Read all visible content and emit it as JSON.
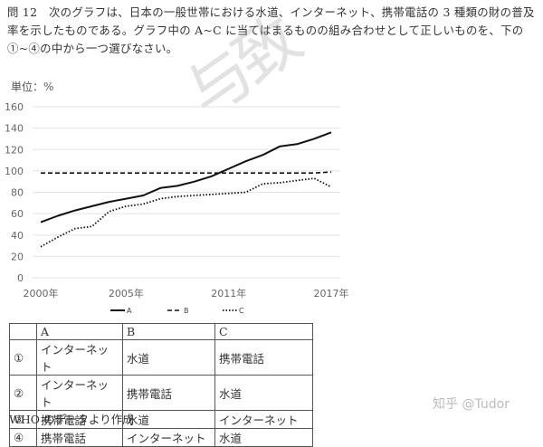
{
  "question": {
    "text": "問 12　次のグラフは、日本の一般世帯における水道、インターネット、携帯電話の 3 種類の財の普及率を示したものである。グラフ中の A~C に当てはまるものの組み合わせとして正しいものを、下の①~④の中から一つ選びなさい。"
  },
  "unit_label": "単位：%",
  "watermark": "与致",
  "chart_data": {
    "type": "line",
    "title": "",
    "xlabel": "",
    "ylabel": "単位：%",
    "ylim": [
      0,
      160
    ],
    "yticks": [
      0,
      20,
      40,
      60,
      80,
      100,
      120,
      140,
      160
    ],
    "grid": true,
    "legend_position": "bottom",
    "x": [
      2000,
      2001,
      2002,
      2003,
      2004,
      2005,
      2006,
      2007,
      2008,
      2009,
      2010,
      2011,
      2012,
      2013,
      2014,
      2015,
      2016,
      2017
    ],
    "xtick_labels": [
      {
        "year": 2000,
        "label": "2000年"
      },
      {
        "year": 2005,
        "label": "2005年"
      },
      {
        "year": 2011,
        "label": "2011年"
      },
      {
        "year": 2017,
        "label": "2017年"
      }
    ],
    "series": [
      {
        "name": "A",
        "style": "solid",
        "values": [
          52,
          58,
          63,
          67,
          71,
          74,
          77,
          84,
          86,
          90,
          95,
          102,
          109,
          115,
          123,
          125,
          130,
          136
        ]
      },
      {
        "name": "B",
        "style": "dashed",
        "values": [
          98,
          98,
          98,
          98,
          98,
          98,
          98,
          98,
          98,
          98,
          98,
          98,
          98,
          98,
          98,
          98,
          98,
          99
        ]
      },
      {
        "name": "C",
        "style": "dotted",
        "values": [
          29,
          38,
          46,
          48,
          62,
          67,
          69,
          74,
          76,
          77,
          78,
          79,
          80,
          88,
          89,
          91,
          93,
          85
        ]
      }
    ]
  },
  "options_table": {
    "headers": [
      "",
      "A",
      "B",
      "C"
    ],
    "rows": [
      [
        "①",
        "インターネット",
        "水道",
        "携帯電話"
      ],
      [
        "②",
        "インターネット",
        "携帯電話",
        "水道"
      ],
      [
        "③",
        "携帯電話",
        "水道",
        "インターネット"
      ],
      [
        "④",
        "携帯電話",
        "インターネット",
        "水道"
      ]
    ]
  },
  "source_note": "WHO のデータより作成",
  "zhihu_watermark": "知乎 @Tudor"
}
